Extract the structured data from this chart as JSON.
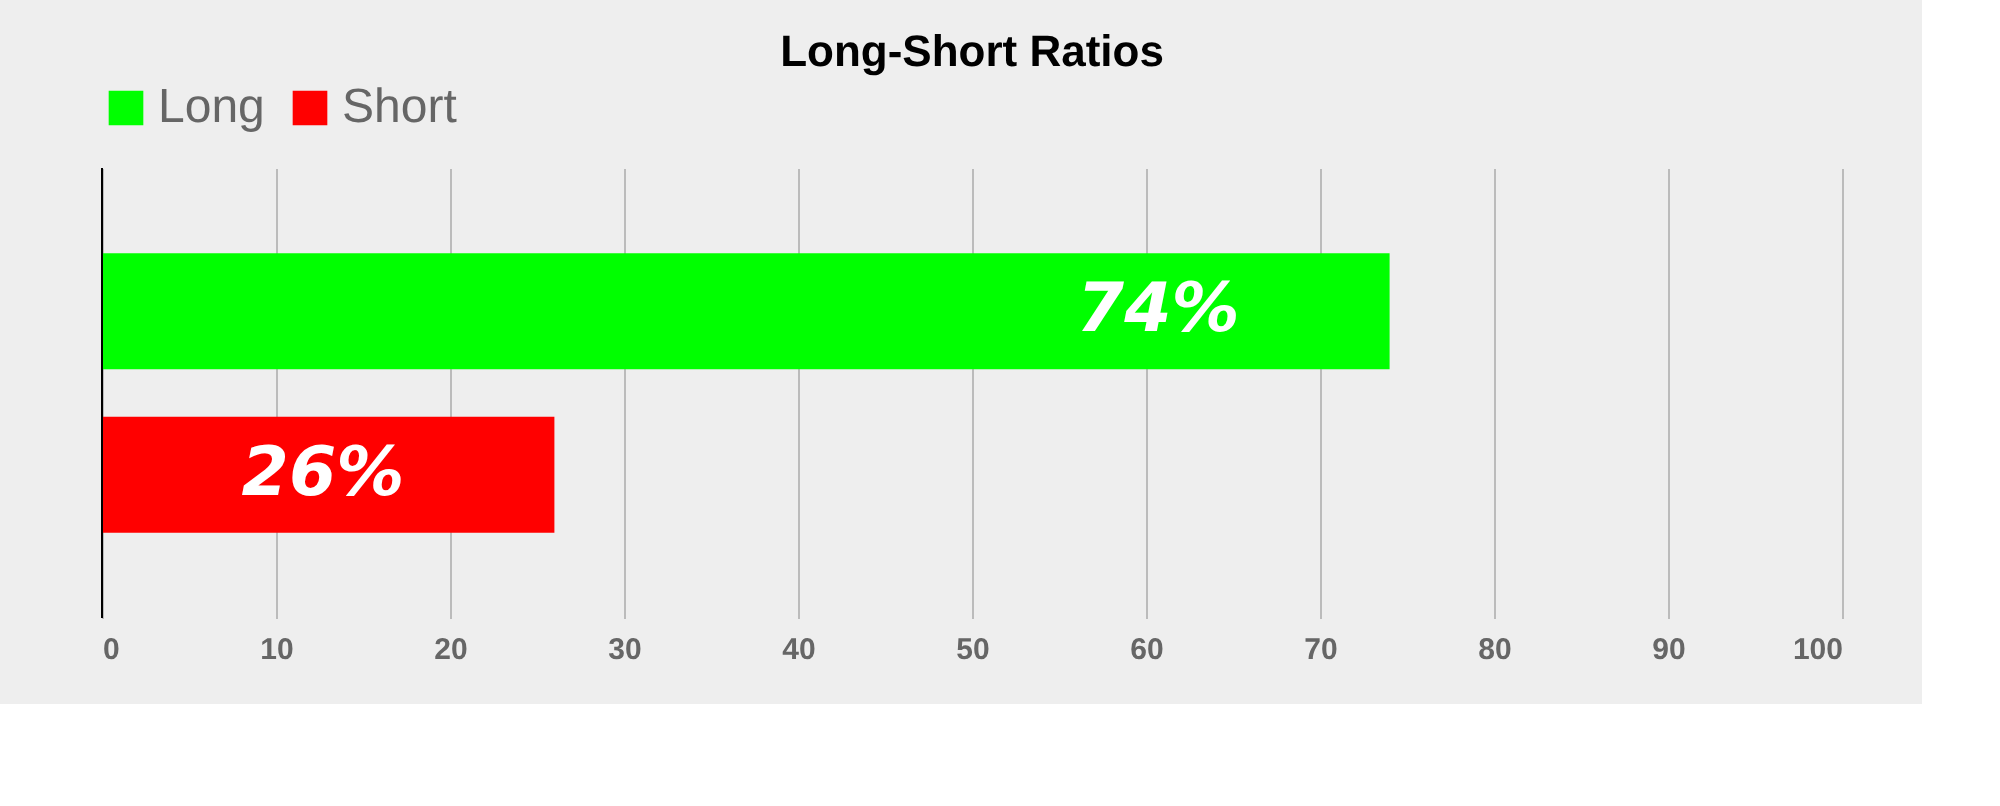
{
  "chart_data": {
    "type": "bar",
    "orientation": "horizontal",
    "title": "Long-Short Ratios",
    "categories": [
      null
    ],
    "series": [
      {
        "name": "Long",
        "color": "#00ff00",
        "values": [
          74
        ],
        "value_labels": [
          "74%"
        ]
      },
      {
        "name": "Short",
        "color": "#ff0000",
        "values": [
          26
        ],
        "value_labels": [
          "26%"
        ]
      }
    ],
    "xlim": [
      0,
      100
    ],
    "xticks": [
      0,
      10,
      20,
      30,
      40,
      50,
      60,
      70,
      80,
      90,
      100
    ],
    "grid": "x",
    "legend": "top",
    "tick_labels": "x"
  }
}
